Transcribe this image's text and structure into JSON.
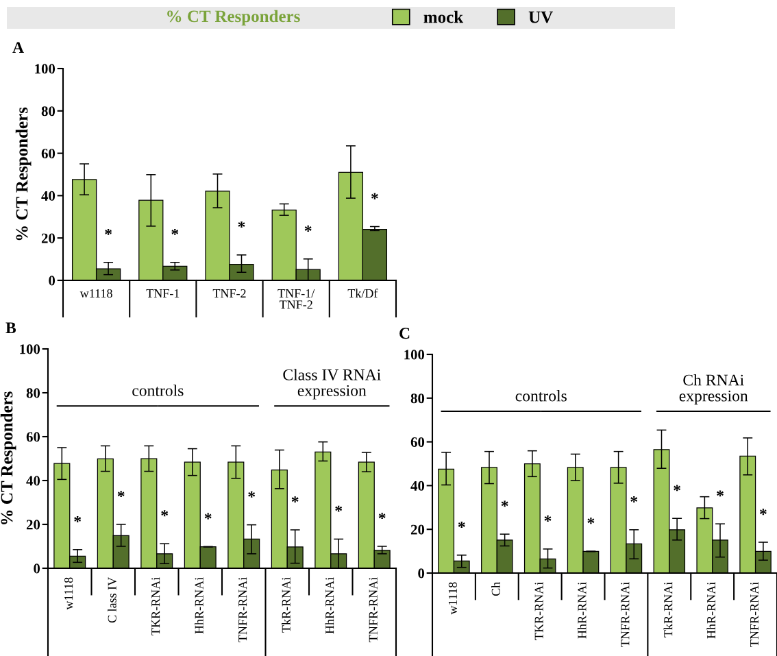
{
  "chart_data": [
    {
      "type": "bar",
      "title": "A",
      "legend_title": "% CT Responders",
      "legend": "top",
      "ylabel": "% CT Responders",
      "categories": [
        "w1118",
        "TNF-1",
        "TNF-2",
        "TNF-1/\nTNF-2",
        "Tk/Df"
      ],
      "ylim": [
        0,
        100
      ],
      "yticks": [
        0,
        20,
        40,
        60,
        80,
        100
      ],
      "grid": false,
      "series": [
        {
          "name": "mock",
          "color": "#9fc85a",
          "values": [
            47.6,
            37.8,
            42.1,
            33.2,
            51
          ],
          "errors": [
            [
              40.4,
              55
            ],
            [
              25.6,
              49.9
            ],
            [
              34.3,
              50.2
            ],
            [
              30.7,
              36.1
            ],
            [
              38.8,
              63.5
            ]
          ]
        },
        {
          "name": "UV",
          "color": "#536f2b",
          "values": [
            5.5,
            6.7,
            7.6,
            5.1,
            24.1
          ],
          "errors": [
            [
              2.7,
              8.5
            ],
            [
              4.9,
              8.5
            ],
            [
              3.8,
              12
            ],
            [
              0,
              10.1
            ],
            [
              23.5,
              25.4
            ]
          ]
        }
      ],
      "annotations": [
        "*",
        "*",
        "*",
        "*",
        "*"
      ]
    },
    {
      "type": "bar",
      "title": "B",
      "legend": false,
      "ylabel": "% CT Responders",
      "categories": [
        "w1118",
        "C lass IV",
        "TKR-RNAi",
        "HhR-RNAi",
        "TNFR-RNAi",
        "TkR-RNAi",
        "HhR-RNAi",
        "TNFR-RNAi"
      ],
      "ylim": [
        0,
        100
      ],
      "yticks": [
        0,
        20,
        40,
        60,
        80,
        100
      ],
      "grid": false,
      "series": [
        {
          "color": "#9fc85a",
          "values": [
            47.8,
            49.9,
            50,
            48.4,
            48.4,
            44.8,
            53,
            48.4
          ],
          "errors": [
            [
              40.5,
              55
            ],
            [
              44.2,
              55.8
            ],
            [
              44.2,
              55.8
            ],
            [
              42.3,
              54.5
            ],
            [
              41,
              55.8
            ],
            [
              36.3,
              53.9
            ],
            [
              48.9,
              57.6
            ],
            [
              44,
              52.8
            ]
          ]
        },
        {
          "color": "#536f2b",
          "values": [
            5.5,
            14.9,
            6.6,
            9.8,
            13.3,
            9.7,
            6.6,
            8.2
          ],
          "errors": [
            [
              2.7,
              8.5
            ],
            [
              10,
              20
            ],
            [
              2.1,
              11.2
            ],
            [
              9.7,
              9.9
            ],
            [
              6.6,
              19.8
            ],
            [
              2.3,
              17.5
            ],
            [
              0,
              13.3
            ],
            [
              6.6,
              10
            ]
          ]
        }
      ],
      "annotations": [
        "controls",
        "Class IV RNAi\nexpression",
        "*",
        "*",
        "*",
        "*",
        "*",
        "*",
        "*",
        "*"
      ]
    },
    {
      "type": "bar",
      "title": "C",
      "legend": false,
      "categories": [
        "w1118",
        "Ch",
        "TKR-RNAi",
        "HhR-RNAi",
        "TNFR-RNAi",
        "TkR-RNAi",
        "HhR-RNAi",
        "TNFR-RNAi"
      ],
      "ylim": [
        0,
        100
      ],
      "yticks": [
        0,
        20,
        40,
        60,
        80,
        100
      ],
      "grid": false,
      "series": [
        {
          "color": "#9fc85a",
          "values": [
            47.5,
            48.3,
            50,
            48.3,
            48.3,
            56.5,
            29.8,
            53.5
          ],
          "errors": [
            [
              40.3,
              55.2
            ],
            [
              40.9,
              55.6
            ],
            [
              44.1,
              55.9
            ],
            [
              42.3,
              54.4
            ],
            [
              41.1,
              55.6
            ],
            [
              47.9,
              65.4
            ],
            [
              24.9,
              34.9
            ],
            [
              44.9,
              61.8
            ]
          ]
        },
        {
          "color": "#536f2b",
          "values": [
            5.5,
            15.1,
            6.5,
            9.9,
            13.4,
            19.8,
            15.1,
            9.9
          ],
          "errors": [
            [
              2.6,
              8.2
            ],
            [
              12.4,
              17.8
            ],
            [
              2.3,
              11
            ],
            [
              9.8,
              10
            ],
            [
              6.5,
              19.8
            ],
            [
              15.1,
              25
            ],
            [
              7.3,
              22.5
            ],
            [
              5.9,
              14.1
            ]
          ]
        }
      ],
      "annotations": [
        "controls",
        "Ch RNAi\nexpression",
        "*",
        "*",
        "*",
        "*",
        "*",
        "*",
        "*",
        "*"
      ]
    }
  ]
}
